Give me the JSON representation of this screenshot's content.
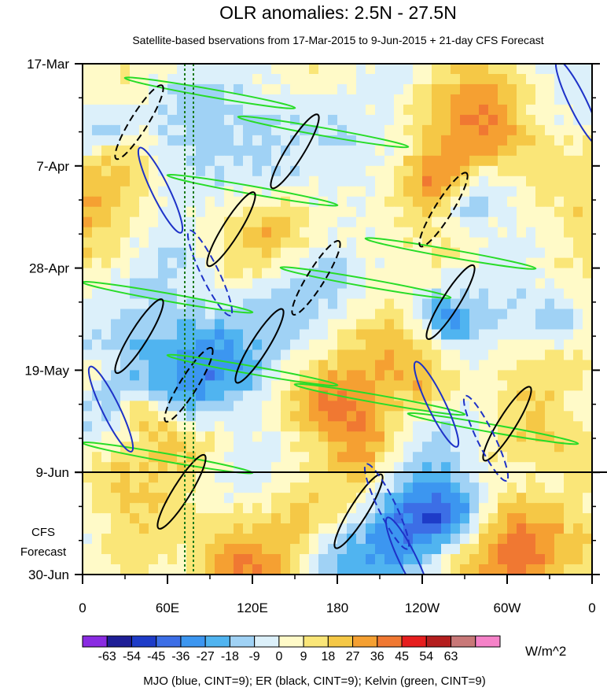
{
  "chart_data": {
    "type": "heatmap",
    "title": "OLR anomalies: 2.5N - 27.5N",
    "subtitle": "Satellite-based bservations from 17-Mar-2015 to 9-Jun-2015 + 21-day CFS Forecast",
    "x_ticks": [
      "0",
      "60E",
      "120E",
      "180",
      "120W",
      "60W",
      "0"
    ],
    "x_tick_lon": [
      0,
      60,
      120,
      180,
      240,
      300,
      360
    ],
    "x_range": [
      0,
      360
    ],
    "y_ticks": [
      "17-Mar",
      "7-Apr",
      "28-Apr",
      "19-May",
      "9-Jun",
      "30-Jun"
    ],
    "y_tick_day": [
      0,
      21,
      42,
      63,
      84,
      105
    ],
    "y_range_days": [
      0,
      105
    ],
    "observation_end_day": 84,
    "forecast_label_line1": "CFS",
    "forecast_label_line2": "Forecast",
    "reference_lines_lon": [
      72,
      80
    ],
    "colorbar": {
      "levels": [
        "-63",
        "-54",
        "-45",
        "-36",
        "-27",
        "-18",
        "-9",
        "0",
        "9",
        "18",
        "27",
        "36",
        "45",
        "54",
        "63"
      ],
      "colors": [
        "#8a2be2",
        "#1e1e96",
        "#1e3cc8",
        "#3c6ee6",
        "#3c96f0",
        "#50b4f0",
        "#a0d2f5",
        "#dcf0fa",
        "#fffac8",
        "#fae678",
        "#f5c846",
        "#f5a032",
        "#f07832",
        "#e61e1e",
        "#b41e1e",
        "#c87878",
        "#f582c8"
      ],
      "units": "W/m^2"
    },
    "legend_text": "MJO (blue, CINT=9); ER (black, CINT=9); Kelvin (green, CINT=9)",
    "contour_colors": {
      "mjo": "#1e32c8",
      "er": "#000000",
      "kelvin": "#28dc28"
    }
  }
}
